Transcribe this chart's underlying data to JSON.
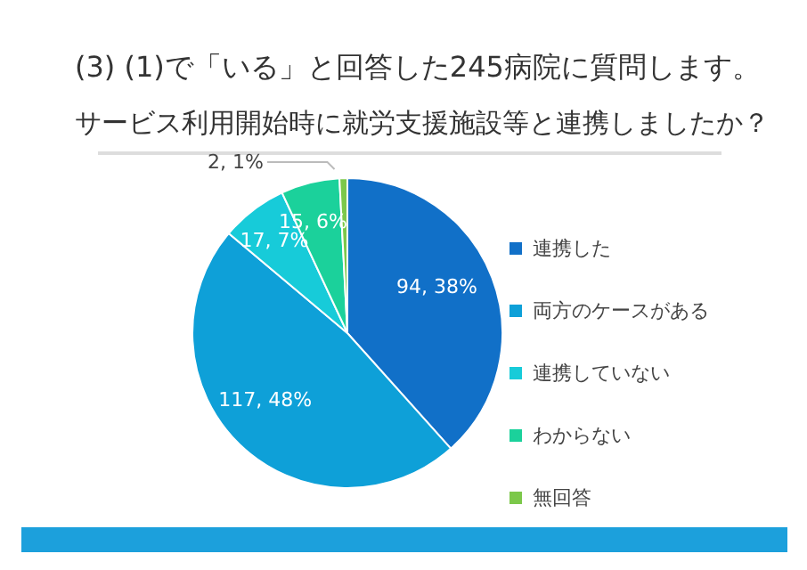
{
  "chart_data": {
    "type": "pie",
    "title": "(3) (1)で「いる」と回答した245病院に質問します。",
    "subtitle": "サービス利用開始時に就労支援施設等と連携しましたか？",
    "categories": [
      "連携した",
      "両方のケースがある",
      "連携していない",
      "わからない",
      "無回答"
    ],
    "values": [
      94,
      117,
      17,
      15,
      2
    ],
    "colors": [
      "#1170c8",
      "#0ea0d8",
      "#17cbd9",
      "#1bd19b",
      "#7cc84a"
    ],
    "value_labels": [
      "94, 38%",
      "117, 48%",
      "17, 7%",
      "15, 6%",
      "2, 1%"
    ],
    "legend": "right"
  }
}
